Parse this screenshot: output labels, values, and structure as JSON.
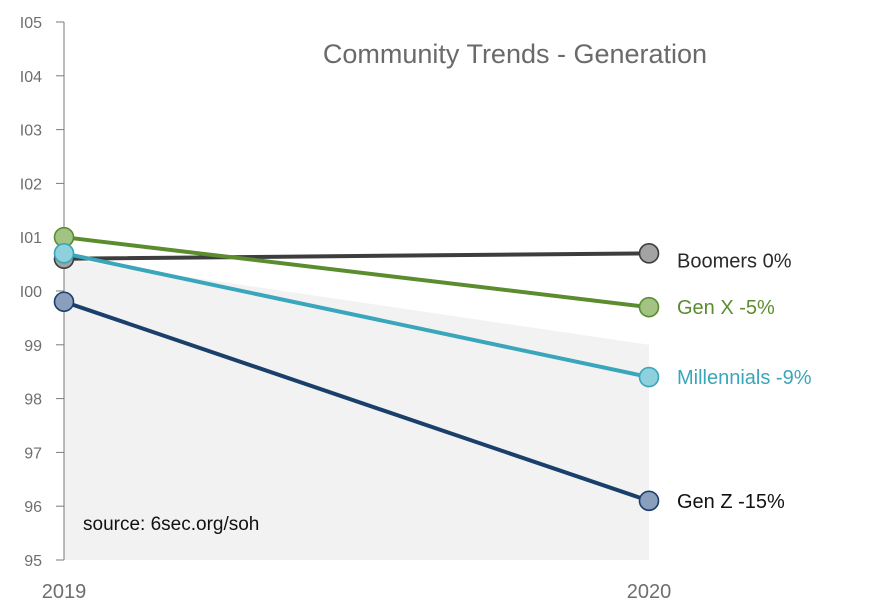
{
  "chart_data": {
    "type": "line",
    "title": "Community Trends - Generation",
    "x": [
      "2019",
      "2020"
    ],
    "ylim": [
      95,
      105
    ],
    "yticks": [
      95,
      96,
      97,
      98,
      99,
      100,
      101,
      102,
      103,
      104,
      105
    ],
    "ytick_labels": [
      "95",
      "96",
      "97",
      "98",
      "99",
      "I00",
      "I01",
      "I02",
      "I03",
      "I04",
      "I05"
    ],
    "grid": false,
    "band": {
      "lower": [
        95,
        95
      ],
      "upper": [
        100.6,
        99.0
      ],
      "color": "#f2f2f2"
    },
    "series": [
      {
        "name": "Boomers",
        "label": "Boomers 0%",
        "values": [
          100.6,
          100.7
        ],
        "color": "#3d3d3d",
        "marker_color": "#a3a3a3",
        "label_color": "#2a2a2a"
      },
      {
        "name": "Gen X",
        "label": "Gen X -5%",
        "values": [
          101.0,
          99.7
        ],
        "color": "#5b8c2e",
        "marker_color": "#a2c384",
        "label_color": "#5b8c2e"
      },
      {
        "name": "Millennials",
        "label": "Millennials -9%",
        "values": [
          100.7,
          98.4
        ],
        "color": "#3aa6bb",
        "marker_color": "#8ed0dc",
        "label_color": "#3aa6bb"
      },
      {
        "name": "Gen Z",
        "label": "Gen Z -15%",
        "values": [
          99.8,
          96.1
        ],
        "color": "#1b3f6b",
        "marker_color": "#8a9fbb",
        "label_color": "#111111"
      }
    ],
    "annotations": [
      "source: 6sec.org/soh"
    ]
  }
}
